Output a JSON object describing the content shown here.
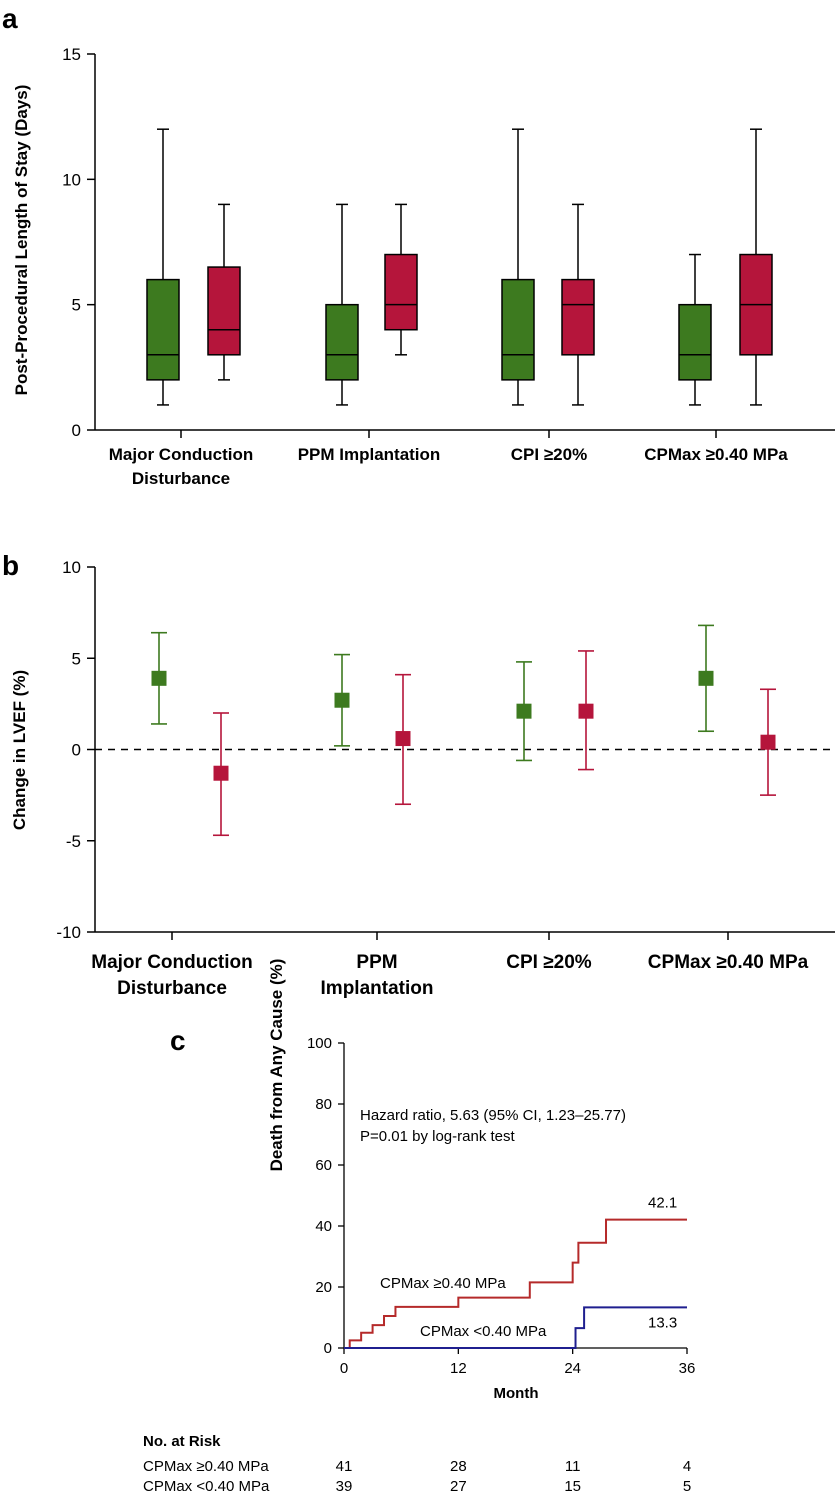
{
  "colors": {
    "green": "#3d7a1f",
    "red": "#b5153b",
    "c_red": "#b52a2a",
    "c_blue": "#1f1f8f"
  },
  "chart_data": [
    {
      "panel": "a",
      "type": "box",
      "ylabel": "Post-Procedural Length of Stay (Days)",
      "ylim": [
        0,
        15
      ],
      "yticks": [
        0,
        5,
        10,
        15
      ],
      "categories": [
        [
          "Major Conduction",
          "Disturbance"
        ],
        [
          "PPM Implantation"
        ],
        [
          "CPI ≥20%"
        ],
        [
          "CPMax ≥0.40 MPa"
        ]
      ],
      "boxes": [
        {
          "cat": 0,
          "color": "green",
          "min": 1,
          "q1": 2,
          "median": 3,
          "q3": 6,
          "max": 12
        },
        {
          "cat": 0,
          "color": "red",
          "min": 2,
          "q1": 3,
          "median": 4,
          "q3": 6.5,
          "max": 9
        },
        {
          "cat": 1,
          "color": "green",
          "min": 1,
          "q1": 2,
          "median": 3,
          "q3": 5,
          "max": 9
        },
        {
          "cat": 1,
          "color": "red",
          "min": 3,
          "q1": 4,
          "median": 5,
          "q3": 7,
          "max": 9
        },
        {
          "cat": 2,
          "color": "green",
          "min": 1,
          "q1": 2,
          "median": 3,
          "q3": 6,
          "max": 12
        },
        {
          "cat": 2,
          "color": "red",
          "min": 1,
          "q1": 3,
          "median": 5,
          "q3": 6,
          "max": 9
        },
        {
          "cat": 3,
          "color": "green",
          "min": 1,
          "q1": 2,
          "median": 3,
          "q3": 5,
          "max": 7
        },
        {
          "cat": 3,
          "color": "red",
          "min": 1,
          "q1": 3,
          "median": 5,
          "q3": 7,
          "max": 12
        }
      ]
    },
    {
      "panel": "b",
      "type": "errorbar",
      "ylabel": "Change in LVEF (%)",
      "ylim": [
        -10,
        10
      ],
      "yticks": [
        -10,
        -5,
        0,
        5,
        10
      ],
      "reference_line": 0,
      "categories": [
        [
          "Major Conduction",
          "Disturbance"
        ],
        [
          "PPM",
          "Implantation"
        ],
        [
          "CPI ≥20%"
        ],
        [
          "CPMax ≥0.40 MPa"
        ]
      ],
      "points": [
        {
          "cat": 0,
          "color": "green",
          "value": 3.9,
          "low": 1.4,
          "high": 6.4
        },
        {
          "cat": 0,
          "color": "red",
          "value": -1.3,
          "low": -4.7,
          "high": 2.0
        },
        {
          "cat": 1,
          "color": "green",
          "value": 2.7,
          "low": 0.2,
          "high": 5.2
        },
        {
          "cat": 1,
          "color": "red",
          "value": 0.6,
          "low": -3.0,
          "high": 4.1
        },
        {
          "cat": 2,
          "color": "green",
          "value": 2.1,
          "low": -0.6,
          "high": 4.8
        },
        {
          "cat": 2,
          "color": "red",
          "value": 2.1,
          "low": -1.1,
          "high": 5.4
        },
        {
          "cat": 3,
          "color": "green",
          "value": 3.9,
          "low": 1.0,
          "high": 6.8
        },
        {
          "cat": 3,
          "color": "red",
          "value": 0.4,
          "low": -2.5,
          "high": 3.3
        }
      ]
    },
    {
      "panel": "c",
      "type": "step",
      "ylabel": "Death from Any Cause (%)",
      "xlabel": "Month",
      "ylim": [
        0,
        100
      ],
      "xlim": [
        0,
        36
      ],
      "yticks": [
        0,
        20,
        40,
        60,
        80,
        100
      ],
      "xticks": [
        0,
        12,
        24,
        36
      ],
      "annotation": [
        "Hazard ratio, 5.63 (95% CI, 1.23–25.77)",
        "P=0.01 by log-rank test"
      ],
      "series": [
        {
          "name": "CPMax ≥0.40 MPa",
          "color": "c_red",
          "end_label": "42.1",
          "x": [
            0,
            0.6,
            1.8,
            3.0,
            4.2,
            5.4,
            12,
            19.5,
            24,
            24.6,
            27.5,
            36
          ],
          "y": [
            0,
            2.5,
            5,
            7.5,
            10.5,
            13.5,
            16.5,
            21.5,
            28,
            34.5,
            42.1,
            42.1
          ]
        },
        {
          "name": "CPMax <0.40 MPa",
          "color": "c_blue",
          "end_label": "13.3",
          "x": [
            0,
            24.3,
            25.2,
            36
          ],
          "y": [
            0,
            6.5,
            13.3,
            13.3
          ]
        }
      ],
      "risk_table": {
        "title": "No. at Risk",
        "rows": [
          {
            "label": "CPMax ≥0.40 MPa",
            "values": [
              "41",
              "28",
              "11",
              "4"
            ]
          },
          {
            "label": "CPMax <0.40 MPa",
            "values": [
              "39",
              "27",
              "15",
              "5"
            ]
          }
        ]
      }
    }
  ],
  "panel_letters": [
    "a",
    "b",
    "c"
  ]
}
